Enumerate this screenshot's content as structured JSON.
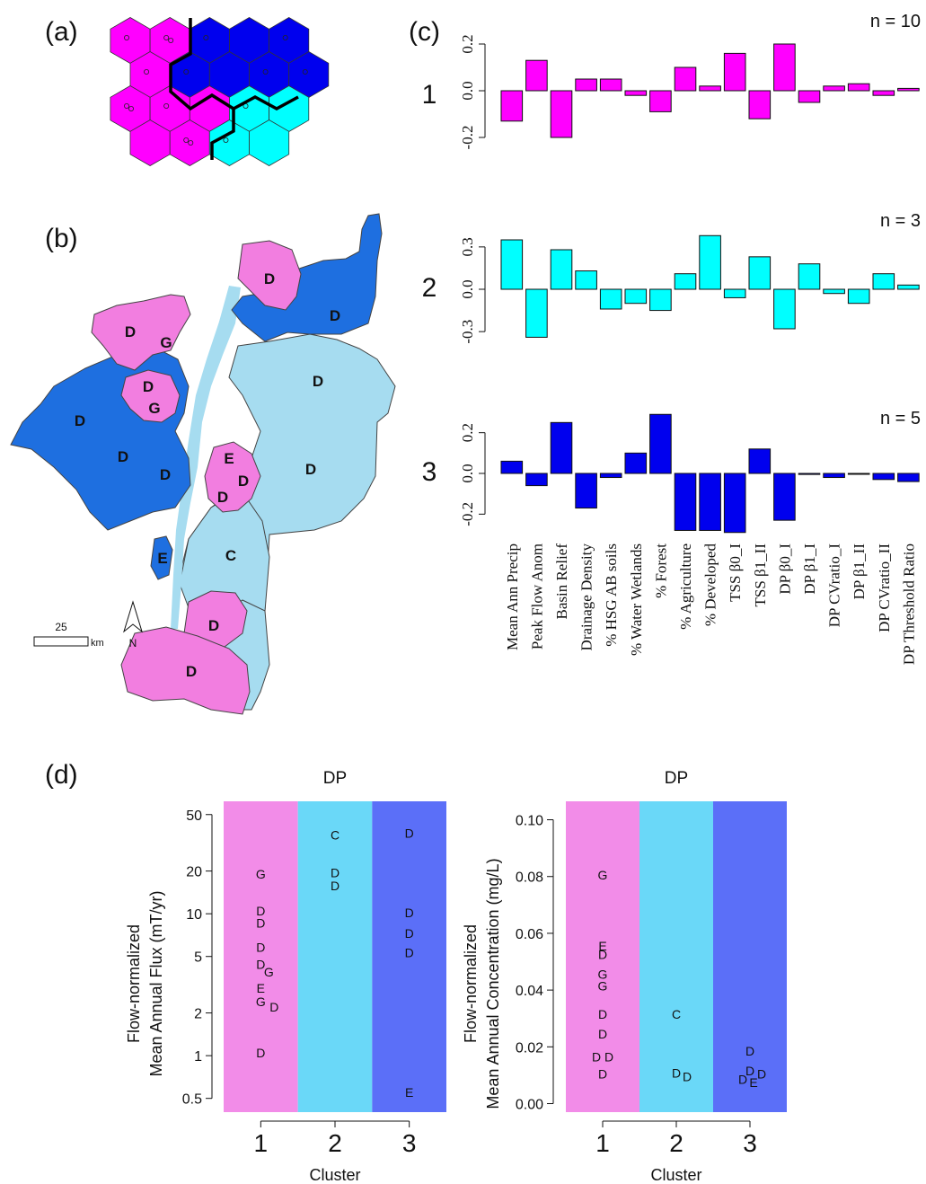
{
  "panels": {
    "a": "(a)",
    "b": "(b)",
    "c": "(c)",
    "d": "(d)"
  },
  "colors": {
    "cluster1": "#ff00ff",
    "cluster2": "#00ffff",
    "cluster3": "#0000ee",
    "map_pink": "#f27ee0",
    "map_blue": "#1e6fe0",
    "map_light": "#a6dcf0",
    "bg1": "#f28ce8",
    "bg2": "#6ad8f8",
    "bg3": "#5b6ff8"
  },
  "map": {
    "scale_value": "25",
    "scale_unit": "km",
    "north": "N",
    "labels": [
      {
        "t": "D",
        "c": "pink"
      },
      {
        "t": "D",
        "c": "blue"
      },
      {
        "t": "D",
        "c": "pink"
      },
      {
        "t": "G",
        "c": "pink"
      },
      {
        "t": "D",
        "c": "light"
      },
      {
        "t": "D",
        "c": "pink"
      },
      {
        "t": "G",
        "c": "pink"
      },
      {
        "t": "D",
        "c": "blue"
      },
      {
        "t": "D",
        "c": "blue"
      },
      {
        "t": "D",
        "c": "blue"
      },
      {
        "t": "E",
        "c": "pink"
      },
      {
        "t": "D",
        "c": "pink"
      },
      {
        "t": "D",
        "c": "pink"
      },
      {
        "t": "D",
        "c": "light"
      },
      {
        "t": "E",
        "c": "blue"
      },
      {
        "t": "C",
        "c": "light"
      },
      {
        "t": "D",
        "c": "pink"
      },
      {
        "t": "D",
        "c": "pink"
      }
    ]
  },
  "chart_data": [
    {
      "type": "bar",
      "title": "1",
      "n_label": "n = 10",
      "color": "#ff00ff",
      "categories": [
        "Mean Ann Precip",
        "Peak Flow Anom",
        "Basin Relief",
        "Drainage Density",
        "% HSG AB soils",
        "% Water Wetlands",
        "% Forest",
        "% Agriculture",
        "% Developed",
        "TSS β0_I",
        "TSS β1_II",
        "DP β0_I",
        "DP β1_I",
        "DP CVratio_I",
        "DP β1_II",
        "DP CVratio_II",
        "DP Threshold Ratio"
      ],
      "values": [
        -0.13,
        0.13,
        -0.2,
        0.05,
        0.05,
        -0.02,
        -0.09,
        0.1,
        0.02,
        0.16,
        -0.12,
        0.2,
        -0.05,
        0.02,
        0.03,
        -0.02,
        0.01
      ],
      "ylim": [
        -0.25,
        0.25
      ],
      "yticks": [
        "-0.2",
        "0.0",
        "0.2"
      ]
    },
    {
      "type": "bar",
      "title": "2",
      "n_label": "n = 3",
      "color": "#00ffff",
      "categories": [
        "Mean Ann Precip",
        "Peak Flow Anom",
        "Basin Relief",
        "Drainage Density",
        "% HSG AB soils",
        "% Water Wetlands",
        "% Forest",
        "% Agriculture",
        "% Developed",
        "TSS β0_I",
        "TSS β1_II",
        "DP β0_I",
        "DP β1_I",
        "DP CVratio_I",
        "DP β1_II",
        "DP CVratio_II",
        "DP Threshold Ratio"
      ],
      "values": [
        0.35,
        -0.34,
        0.28,
        0.13,
        -0.14,
        -0.1,
        -0.15,
        0.11,
        0.38,
        -0.06,
        0.23,
        -0.28,
        0.18,
        -0.03,
        -0.1,
        0.11,
        0.03
      ],
      "ylim": [
        -0.42,
        0.42
      ],
      "yticks": [
        "-0.3",
        "0.0",
        "0.3"
      ]
    },
    {
      "type": "bar",
      "title": "3",
      "n_label": "n = 5",
      "color": "#0000ee",
      "categories": [
        "Mean Ann Precip",
        "Peak Flow Anom",
        "Basin Relief",
        "Drainage Density",
        "% HSG AB soils",
        "% Water Wetlands",
        "% Forest",
        "% Agriculture",
        "% Developed",
        "TSS β0_I",
        "TSS β1_II",
        "DP β0_I",
        "DP β1_I",
        "DP CVratio_I",
        "DP β1_II",
        "DP CVratio_II",
        "DP Threshold Ratio"
      ],
      "values": [
        0.06,
        -0.06,
        0.25,
        -0.17,
        -0.02,
        0.1,
        0.29,
        -0.28,
        -0.28,
        -0.29,
        0.12,
        -0.23,
        -0.005,
        -0.02,
        -0.003,
        -0.03,
        -0.04
      ],
      "ylim": [
        -0.3,
        0.3
      ],
      "yticks": [
        "-0.2",
        "0.0",
        "0.2"
      ]
    },
    {
      "type": "scatter",
      "title": "DP",
      "xlabel": "Cluster",
      "ylabel_lines": [
        "Flow-normalized",
        "Mean Annual Flux (mT/yr)"
      ],
      "yscale": "log",
      "ylim": [
        0.4,
        62
      ],
      "yticks": [
        "0.5",
        "1",
        "2",
        "5",
        "10",
        "20",
        "50"
      ],
      "ytick_values": [
        0.5,
        1,
        2,
        5,
        10,
        20,
        50
      ],
      "categories": [
        "1",
        "2",
        "3"
      ],
      "points": [
        {
          "cluster": 1,
          "label": "G",
          "y": 19,
          "dx": 0
        },
        {
          "cluster": 1,
          "label": "D",
          "y": 10.5,
          "dx": 0
        },
        {
          "cluster": 1,
          "label": "D",
          "y": 8.6,
          "dx": 0
        },
        {
          "cluster": 1,
          "label": "D",
          "y": 5.8,
          "dx": 0
        },
        {
          "cluster": 1,
          "label": "D",
          "y": 4.4,
          "dx": 0
        },
        {
          "cluster": 1,
          "label": "G",
          "y": 3.9,
          "dx": 9
        },
        {
          "cluster": 1,
          "label": "E",
          "y": 3.0,
          "dx": 0
        },
        {
          "cluster": 1,
          "label": "G",
          "y": 2.4,
          "dx": 0
        },
        {
          "cluster": 1,
          "label": "D",
          "y": 2.2,
          "dx": 15
        },
        {
          "cluster": 1,
          "label": "D",
          "y": 1.05,
          "dx": 0
        },
        {
          "cluster": 2,
          "label": "C",
          "y": 36,
          "dx": 0
        },
        {
          "cluster": 2,
          "label": "D",
          "y": 19.5,
          "dx": 0
        },
        {
          "cluster": 2,
          "label": "D",
          "y": 15.8,
          "dx": 0
        },
        {
          "cluster": 3,
          "label": "D",
          "y": 37,
          "dx": 0
        },
        {
          "cluster": 3,
          "label": "D",
          "y": 10.2,
          "dx": 0
        },
        {
          "cluster": 3,
          "label": "D",
          "y": 7.3,
          "dx": 0
        },
        {
          "cluster": 3,
          "label": "D",
          "y": 5.3,
          "dx": 0
        },
        {
          "cluster": 3,
          "label": "E",
          "y": 0.55,
          "dx": 0
        }
      ]
    },
    {
      "type": "scatter",
      "title": "DP",
      "xlabel": "Cluster",
      "ylabel_lines": [
        "Flow-normalized",
        "Mean Annual Concentration (mg/L)"
      ],
      "yscale": "linear",
      "ylim": [
        -0.003,
        0.1065
      ],
      "yticks": [
        "0.00",
        "0.02",
        "0.04",
        "0.06",
        "0.08",
        "0.10"
      ],
      "ytick_values": [
        0,
        0.02,
        0.04,
        0.06,
        0.08,
        0.1
      ],
      "categories": [
        "1",
        "2",
        "3"
      ],
      "points": [
        {
          "cluster": 1,
          "label": "G",
          "y": 0.0805,
          "dx": 0
        },
        {
          "cluster": 1,
          "label": "E",
          "y": 0.0555,
          "dx": 0
        },
        {
          "cluster": 1,
          "label": "D",
          "y": 0.0525,
          "dx": 0
        },
        {
          "cluster": 1,
          "label": "G",
          "y": 0.0455,
          "dx": 0
        },
        {
          "cluster": 1,
          "label": "G",
          "y": 0.0415,
          "dx": 0
        },
        {
          "cluster": 1,
          "label": "D",
          "y": 0.0315,
          "dx": 0
        },
        {
          "cluster": 1,
          "label": "D",
          "y": 0.0245,
          "dx": 0
        },
        {
          "cluster": 1,
          "label": "D",
          "y": 0.0165,
          "dx": -7
        },
        {
          "cluster": 1,
          "label": "D",
          "y": 0.0165,
          "dx": 7
        },
        {
          "cluster": 1,
          "label": "D",
          "y": 0.0105,
          "dx": 0
        },
        {
          "cluster": 2,
          "label": "C",
          "y": 0.0315,
          "dx": 0
        },
        {
          "cluster": 2,
          "label": "D",
          "y": 0.0108,
          "dx": 0
        },
        {
          "cluster": 2,
          "label": "D",
          "y": 0.0095,
          "dx": 12
        },
        {
          "cluster": 3,
          "label": "D",
          "y": 0.0185,
          "dx": 0
        },
        {
          "cluster": 3,
          "label": "D",
          "y": 0.0115,
          "dx": 0
        },
        {
          "cluster": 3,
          "label": "D",
          "y": 0.0105,
          "dx": 13
        },
        {
          "cluster": 3,
          "label": "D",
          "y": 0.0085,
          "dx": -8
        },
        {
          "cluster": 3,
          "label": "E",
          "y": 0.0075,
          "dx": 4
        }
      ]
    }
  ]
}
